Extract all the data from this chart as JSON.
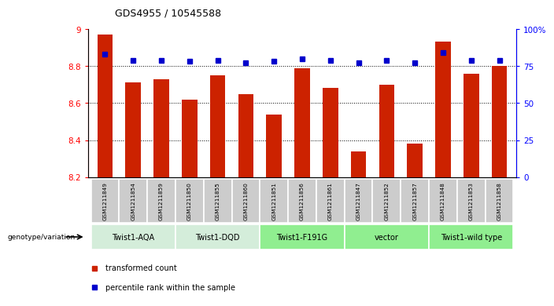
{
  "title": "GDS4955 / 10545588",
  "samples": [
    "GSM1211849",
    "GSM1211854",
    "GSM1211859",
    "GSM1211850",
    "GSM1211855",
    "GSM1211860",
    "GSM1211851",
    "GSM1211856",
    "GSM1211861",
    "GSM1211847",
    "GSM1211852",
    "GSM1211857",
    "GSM1211848",
    "GSM1211853",
    "GSM1211858"
  ],
  "red_values": [
    8.97,
    8.71,
    8.73,
    8.62,
    8.75,
    8.65,
    8.54,
    8.79,
    8.68,
    8.34,
    8.7,
    8.38,
    8.93,
    8.76,
    8.8
  ],
  "blue_values": [
    83,
    79,
    79,
    78,
    79,
    77,
    78,
    80,
    79,
    77,
    79,
    77,
    84,
    79,
    79
  ],
  "ylim_left": [
    8.2,
    9.0
  ],
  "ylim_right": [
    0,
    100
  ],
  "yticks_left": [
    8.2,
    8.4,
    8.6,
    8.8,
    9.0
  ],
  "ytick_left_labels": [
    "8.2",
    "8.4",
    "8.6",
    "8.8",
    "9"
  ],
  "yticks_right": [
    0,
    25,
    50,
    75,
    100
  ],
  "ytick_right_labels": [
    "0",
    "25",
    "50",
    "75",
    "100%"
  ],
  "grid_lines": [
    8.4,
    8.6,
    8.8
  ],
  "bar_color": "#cc2200",
  "dot_color": "#0000cc",
  "legend_items": [
    {
      "label": "transformed count",
      "color": "#cc2200"
    },
    {
      "label": "percentile rank within the sample",
      "color": "#0000cc"
    }
  ],
  "genotype_label": "genotype/variation",
  "group_defs": [
    {
      "label": "Twist1-AQA",
      "indices": [
        0,
        1,
        2
      ],
      "color": "#d4edda"
    },
    {
      "label": "Twist1-DQD",
      "indices": [
        3,
        4,
        5
      ],
      "color": "#d4edda"
    },
    {
      "label": "Twist1-F191G",
      "indices": [
        6,
        7,
        8
      ],
      "color": "#90EE90"
    },
    {
      "label": "vector",
      "indices": [
        9,
        10,
        11
      ],
      "color": "#90EE90"
    },
    {
      "label": "Twist1-wild type",
      "indices": [
        12,
        13,
        14
      ],
      "color": "#90EE90"
    }
  ]
}
